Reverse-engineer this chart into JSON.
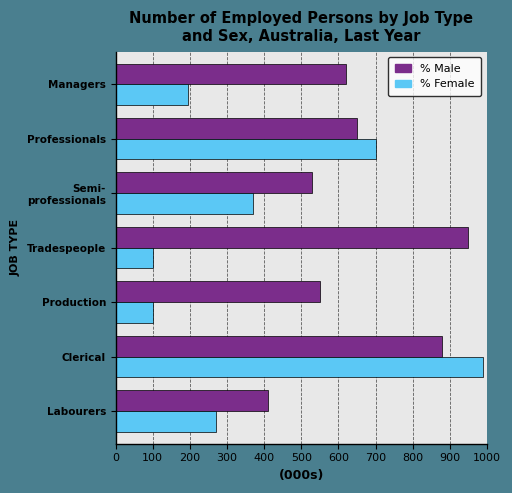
{
  "title": "Number of Employed Persons by Job Type\nand Sex, Australia, Last Year",
  "categories": [
    "Managers",
    "Professionals",
    "Semi-\nprofessionals",
    "Tradespeople",
    "Production",
    "Clerical",
    "Labourers"
  ],
  "male_values": [
    620,
    650,
    530,
    950,
    550,
    880,
    410
  ],
  "female_values": [
    195,
    700,
    370,
    100,
    100,
    990,
    270
  ],
  "male_color": "#7B2D8B",
  "female_color": "#5BC8F5",
  "bar_height": 0.38,
  "xlim": [
    0,
    1000
  ],
  "xticks": [
    0,
    100,
    200,
    300,
    400,
    500,
    600,
    700,
    800,
    900,
    1000
  ],
  "xlabel": "(000s)",
  "ylabel": "JOB TYPE",
  "legend_labels": [
    "% Male",
    "% Female"
  ],
  "figure_background": "#4A7F8F",
  "plot_background": "#E8E8E8"
}
